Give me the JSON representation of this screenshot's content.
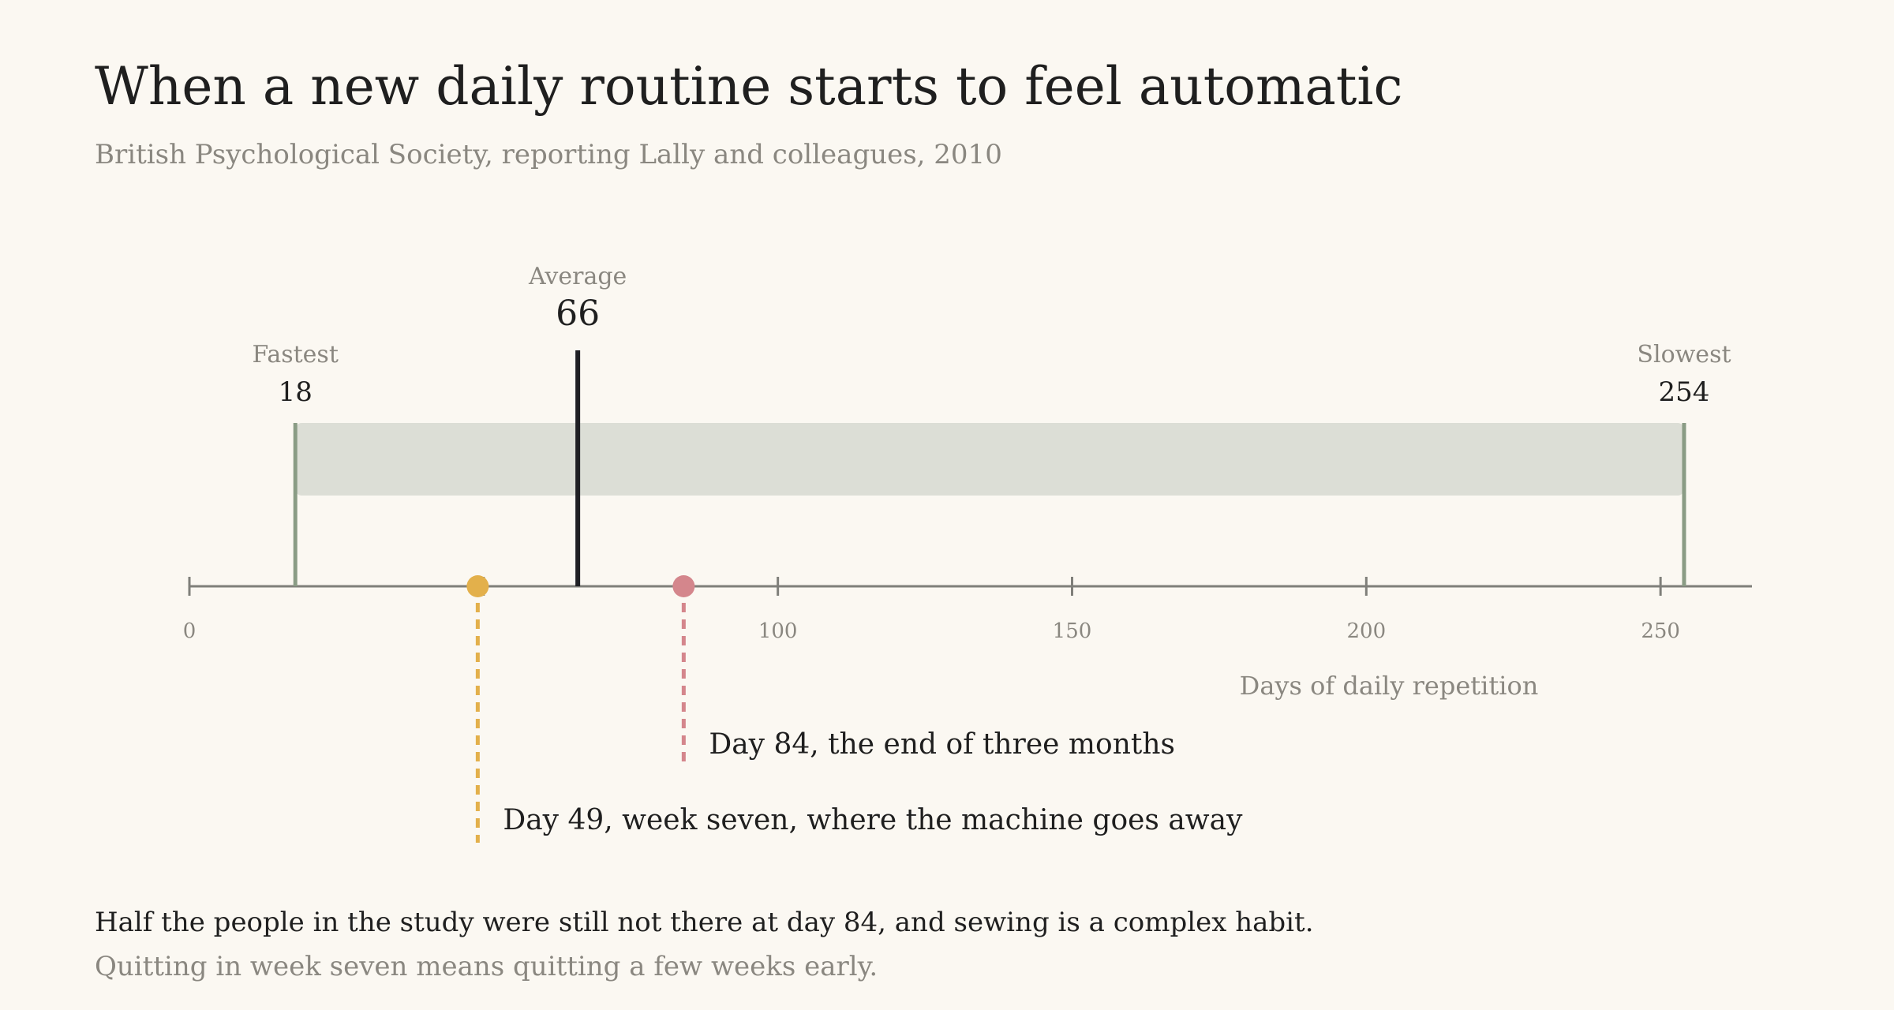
{
  "title": "When a new daily routine starts to feel automatic",
  "subtitle": "British Psychological Society, reporting Lally and colleagues, 2010",
  "chart_data": {
    "type": "range-timeline",
    "xlabel": "Days of daily repetition",
    "xlim": [
      0,
      265
    ],
    "ticks": [
      0,
      50,
      100,
      150,
      200,
      250
    ],
    "tick_labels": [
      "0",
      "",
      "100",
      "150",
      "200",
      "250"
    ],
    "range": {
      "min": 18,
      "max": 254
    },
    "markers": [
      {
        "id": "fastest",
        "label": "Fastest",
        "value": 18,
        "value_label": "18",
        "color": "#8a9c85"
      },
      {
        "id": "average",
        "label": "Average",
        "value": 66,
        "value_label": "66",
        "color": "#1f1f24"
      },
      {
        "id": "slowest",
        "label": "Slowest",
        "value": 254,
        "value_label": "254",
        "color": "#8a9c85"
      }
    ],
    "annotations": [
      {
        "id": "day84",
        "value": 84,
        "text": "Day 84, the end of three months",
        "color": "#d4868c"
      },
      {
        "id": "day49",
        "value": 49,
        "text": "Day 49, week seven, where the machine goes away",
        "color": "#e3b04b"
      }
    ],
    "colors": {
      "range_band": "#dcded6",
      "axis": "#7f7f7a"
    }
  },
  "footnote": {
    "line1": "Half the people in the study were still not there at day 84, and sewing is a complex habit.",
    "line2": "Quitting in week seven means quitting a few weeks early."
  }
}
